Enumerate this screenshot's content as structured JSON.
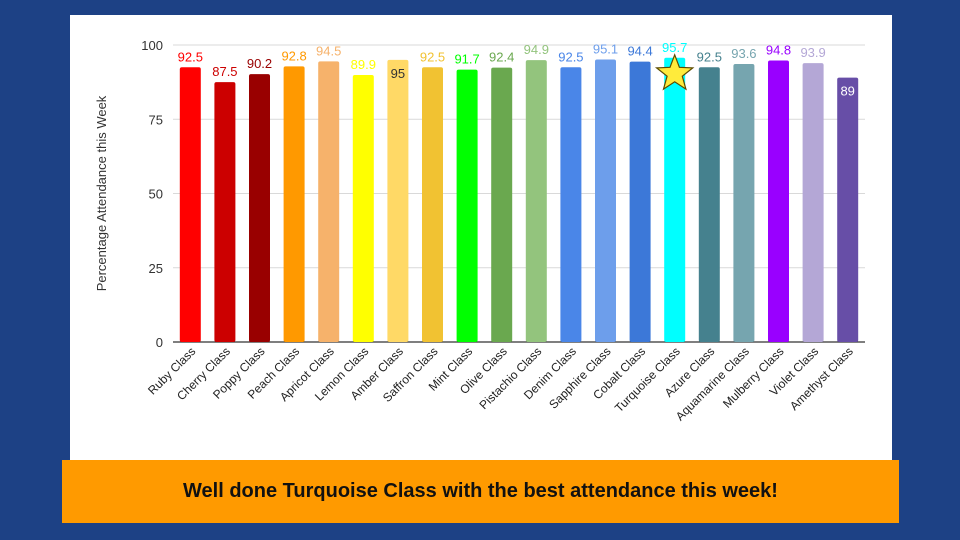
{
  "chart_data": {
    "type": "bar",
    "title": "",
    "xlabel": "",
    "ylabel": "Percentage Attendance this Week",
    "ylim": [
      0,
      100
    ],
    "yticks": [
      0,
      25,
      50,
      75,
      100
    ],
    "grid": true,
    "highlight_icon": "star-icon",
    "highlight_category": "Turquoise Class",
    "categories": [
      "Ruby Class",
      "Cherry Class",
      "Poppy Class",
      "Peach Class",
      "Apricot Class",
      "Lemon Class",
      "Amber Class",
      "Saffron Class",
      "Mint Class",
      "Olive Class",
      "Pistachio Class",
      "Denim Class",
      "Sapphire Class",
      "Cobalt Class",
      "Turquoise Class",
      "Azure Class",
      "Aquamarine Class",
      "Mulberry Class",
      "Violet Class",
      "Amethyst Class"
    ],
    "values": [
      92.5,
      87.5,
      90.2,
      92.8,
      94.5,
      89.9,
      95,
      92.5,
      91.7,
      92.4,
      94.9,
      92.5,
      95.1,
      94.4,
      95.7,
      92.5,
      93.6,
      94.8,
      93.9,
      89
    ],
    "data_labels": [
      "92.5",
      "87.5",
      "90.2",
      "92.8",
      "94.5",
      "89.9",
      "95",
      "92.5",
      "91.7",
      "92.4",
      "94.9",
      "92.5",
      "95.1",
      "94.4",
      "95.7",
      "92.5",
      "93.6",
      "94.8",
      "93.9",
      "89"
    ],
    "colors": [
      "#ff0000",
      "#cc0000",
      "#990000",
      "#ff9900",
      "#f6b26b",
      "#ffff00",
      "#ffd966",
      "#f1c232",
      "#00ff00",
      "#6aa84f",
      "#93c47d",
      "#4a86e8",
      "#6d9eeb",
      "#3c78d8",
      "#00ffff",
      "#45818e",
      "#76a5af",
      "#9900ff",
      "#b4a7d6",
      "#674ea7"
    ],
    "label_colors": [
      "#ff0000",
      "#cc0000",
      "#990000",
      "#ff9900",
      "#f6b26b",
      "#ffff00",
      "#333333",
      "#f1c232",
      "#00ff00",
      "#6aa84f",
      "#93c47d",
      "#4a86e8",
      "#6d9eeb",
      "#3c78d8",
      "#00ffff",
      "#45818e",
      "#76a5af",
      "#9900ff",
      "#b4a7d6",
      "#ffffff"
    ],
    "label_inside": [
      false,
      false,
      false,
      false,
      false,
      false,
      true,
      false,
      false,
      false,
      false,
      false,
      false,
      false,
      false,
      false,
      false,
      false,
      false,
      true
    ]
  },
  "banner": {
    "text": "Well done Turquoise Class with the best attendance this week!"
  }
}
